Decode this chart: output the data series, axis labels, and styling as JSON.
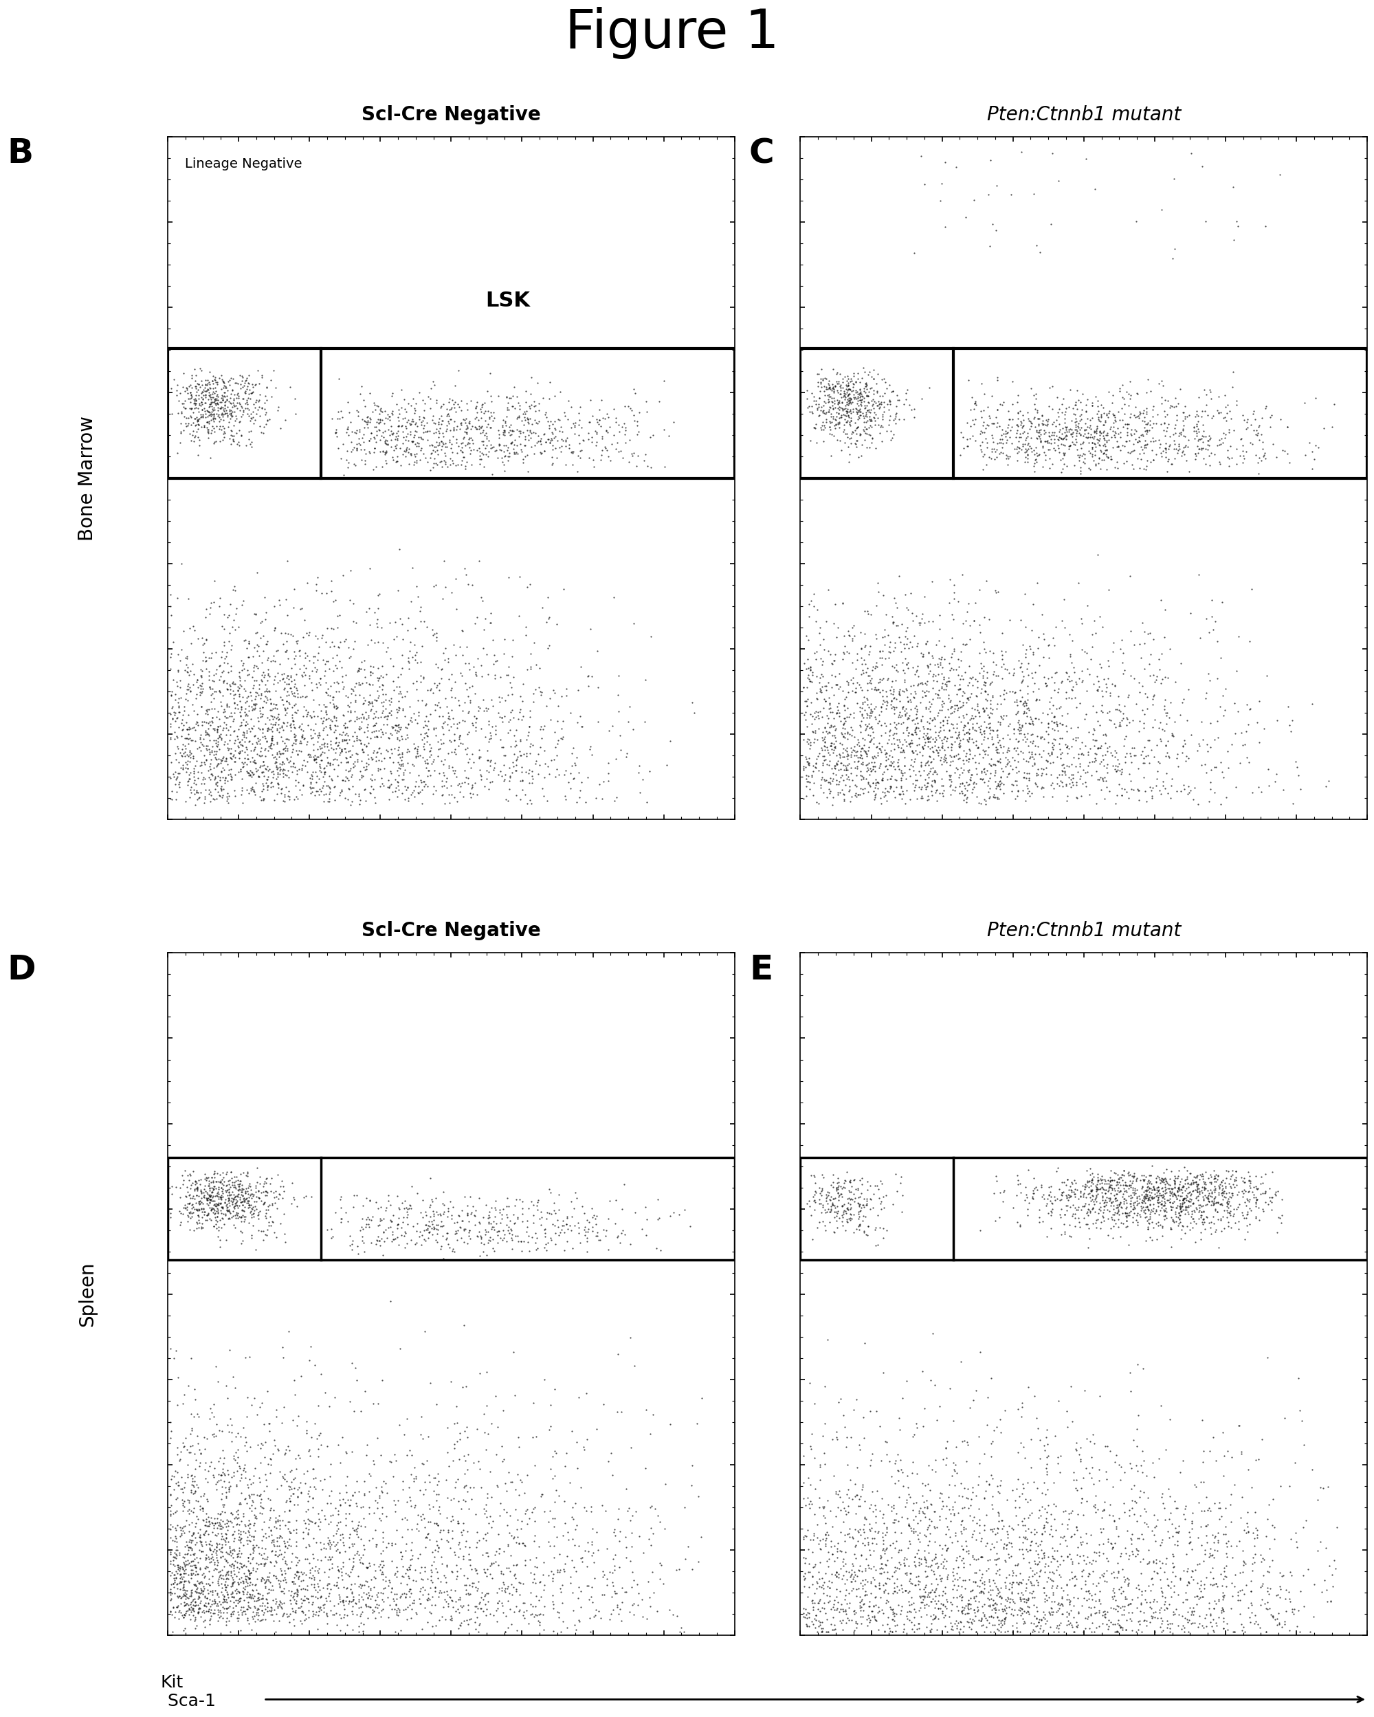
{
  "title": "Figure 1",
  "title_fontsize": 56,
  "bg_color": "#ffffff",
  "panel_B_title": "Scl-Cre Negative",
  "panel_C_title": "Pten:Ctnnb1 mutant",
  "panel_D_title": "Scl-Cre Negative",
  "panel_E_title": "Pten:Ctnnb1 mutant",
  "row1_ylabel": "Bone Marrow",
  "row2_ylabel": "Spleen",
  "xlabel": "Sca-1",
  "ylabel_kit": "Kit",
  "lsk_label": "LSK",
  "lineage_neg_label": "Lineage Negative",
  "dot_color": "#111111",
  "dot_size": 2.5,
  "n_dots": 4000,
  "gate_lw_BM": 3.0,
  "gate_lw_spleen": 2.5,
  "title_fs": 20,
  "label_fs": 36,
  "row_label_fs": 20,
  "axis_label_fs": 18,
  "lsk_fs": 22,
  "lin_neg_fs": 14
}
